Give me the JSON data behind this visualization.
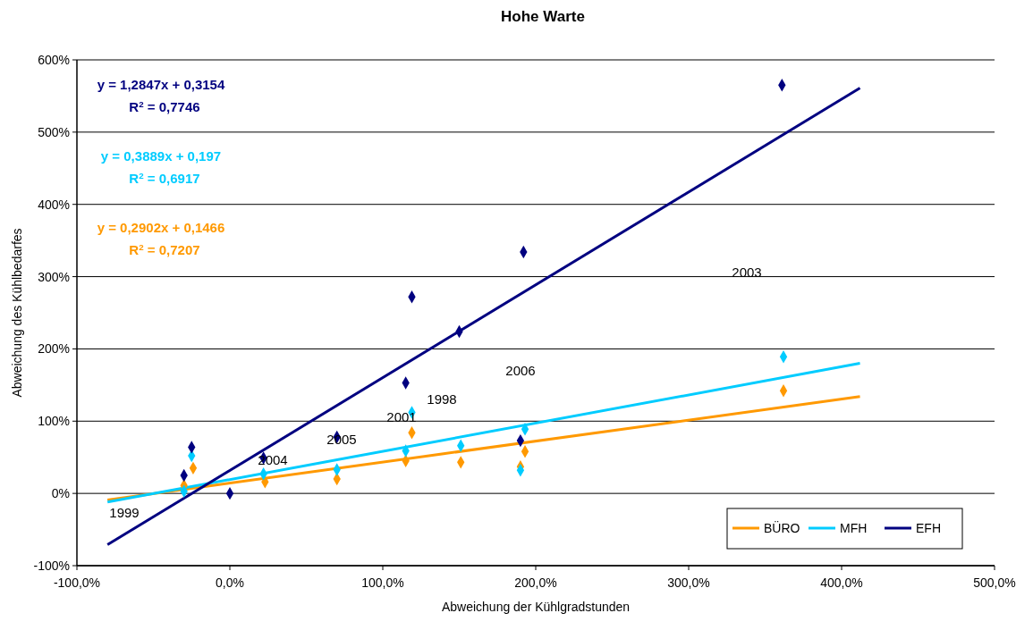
{
  "chart_data": {
    "type": "scatter",
    "title": "Hohe Warte",
    "xlabel": "Abweichung der Kühlgradstunden",
    "ylabel": "Abweichung des Kühlbedarfes",
    "xlim": [
      -100,
      500
    ],
    "xticks": [
      {
        "value": -100,
        "label": "-100,0%"
      },
      {
        "value": 0,
        "label": "0,0%"
      },
      {
        "value": 100,
        "label": "100,0%"
      },
      {
        "value": 200,
        "label": "200,0%"
      },
      {
        "value": 300,
        "label": "300,0%"
      },
      {
        "value": 400,
        "label": "400,0%"
      },
      {
        "value": 500,
        "label": "500,0%"
      }
    ],
    "ylim": [
      -100,
      600
    ],
    "yticks": [
      {
        "value": -100,
        "label": "-100%"
      },
      {
        "value": 0,
        "label": "0%"
      },
      {
        "value": 100,
        "label": "100%"
      },
      {
        "value": 200,
        "label": "200%"
      },
      {
        "value": 300,
        "label": "300%"
      },
      {
        "value": 400,
        "label": "400%"
      },
      {
        "value": 500,
        "label": "500%"
      },
      {
        "value": 600,
        "label": "600%"
      }
    ],
    "grid": "y",
    "legend": "bottom right",
    "marker": "diamond",
    "series": [
      {
        "color": "#ff9900",
        "x": [
          -30,
          -24,
          23,
          70,
          115,
          119,
          151,
          190,
          193,
          362
        ],
        "values": [
          11,
          35,
          16,
          20,
          45,
          84,
          43,
          37,
          58,
          142
        ]
      },
      {
        "color": "#00ccff",
        "x": [
          -30,
          -25,
          22,
          70,
          115,
          119,
          151,
          190,
          193,
          362
        ],
        "values": [
          3,
          52,
          27,
          33,
          59,
          112,
          66,
          32,
          89,
          189
        ]
      },
      {
        "color": "#000080",
        "x": [
          -30,
          -25,
          0,
          22,
          70,
          115,
          119,
          150,
          190,
          192,
          361
        ],
        "values": [
          25,
          64,
          0,
          49,
          78,
          153,
          272,
          224,
          73,
          334,
          565
        ]
      },
      {
        "type": "line",
        "marker": "none",
        "name": "BÜRO",
        "color": "#ff9900",
        "x": [
          -80,
          412
        ],
        "values": [
          -9,
          134
        ]
      },
      {
        "type": "line",
        "marker": "none",
        "name": "MFH",
        "color": "#00ccff",
        "x": [
          -80,
          412
        ],
        "values": [
          -12,
          180
        ]
      },
      {
        "type": "line",
        "marker": "none",
        "name": "EFH",
        "color": "#000080",
        "x": [
          -80,
          412
        ],
        "values": [
          -71,
          561
        ]
      }
    ],
    "annotations": [
      "y = 1,2847x + 0,3154",
      "R$^{2}$ = 0,7746",
      "y = 0,3889x + 0,197",
      "R$^{2}$ = 0,6917",
      "y = 0,2902x + 0,1466",
      "R$^{2}$ = 0,7207",
      "1999",
      "2004",
      "2005",
      "2001",
      "1998",
      "2006",
      "2003"
    ]
  }
}
